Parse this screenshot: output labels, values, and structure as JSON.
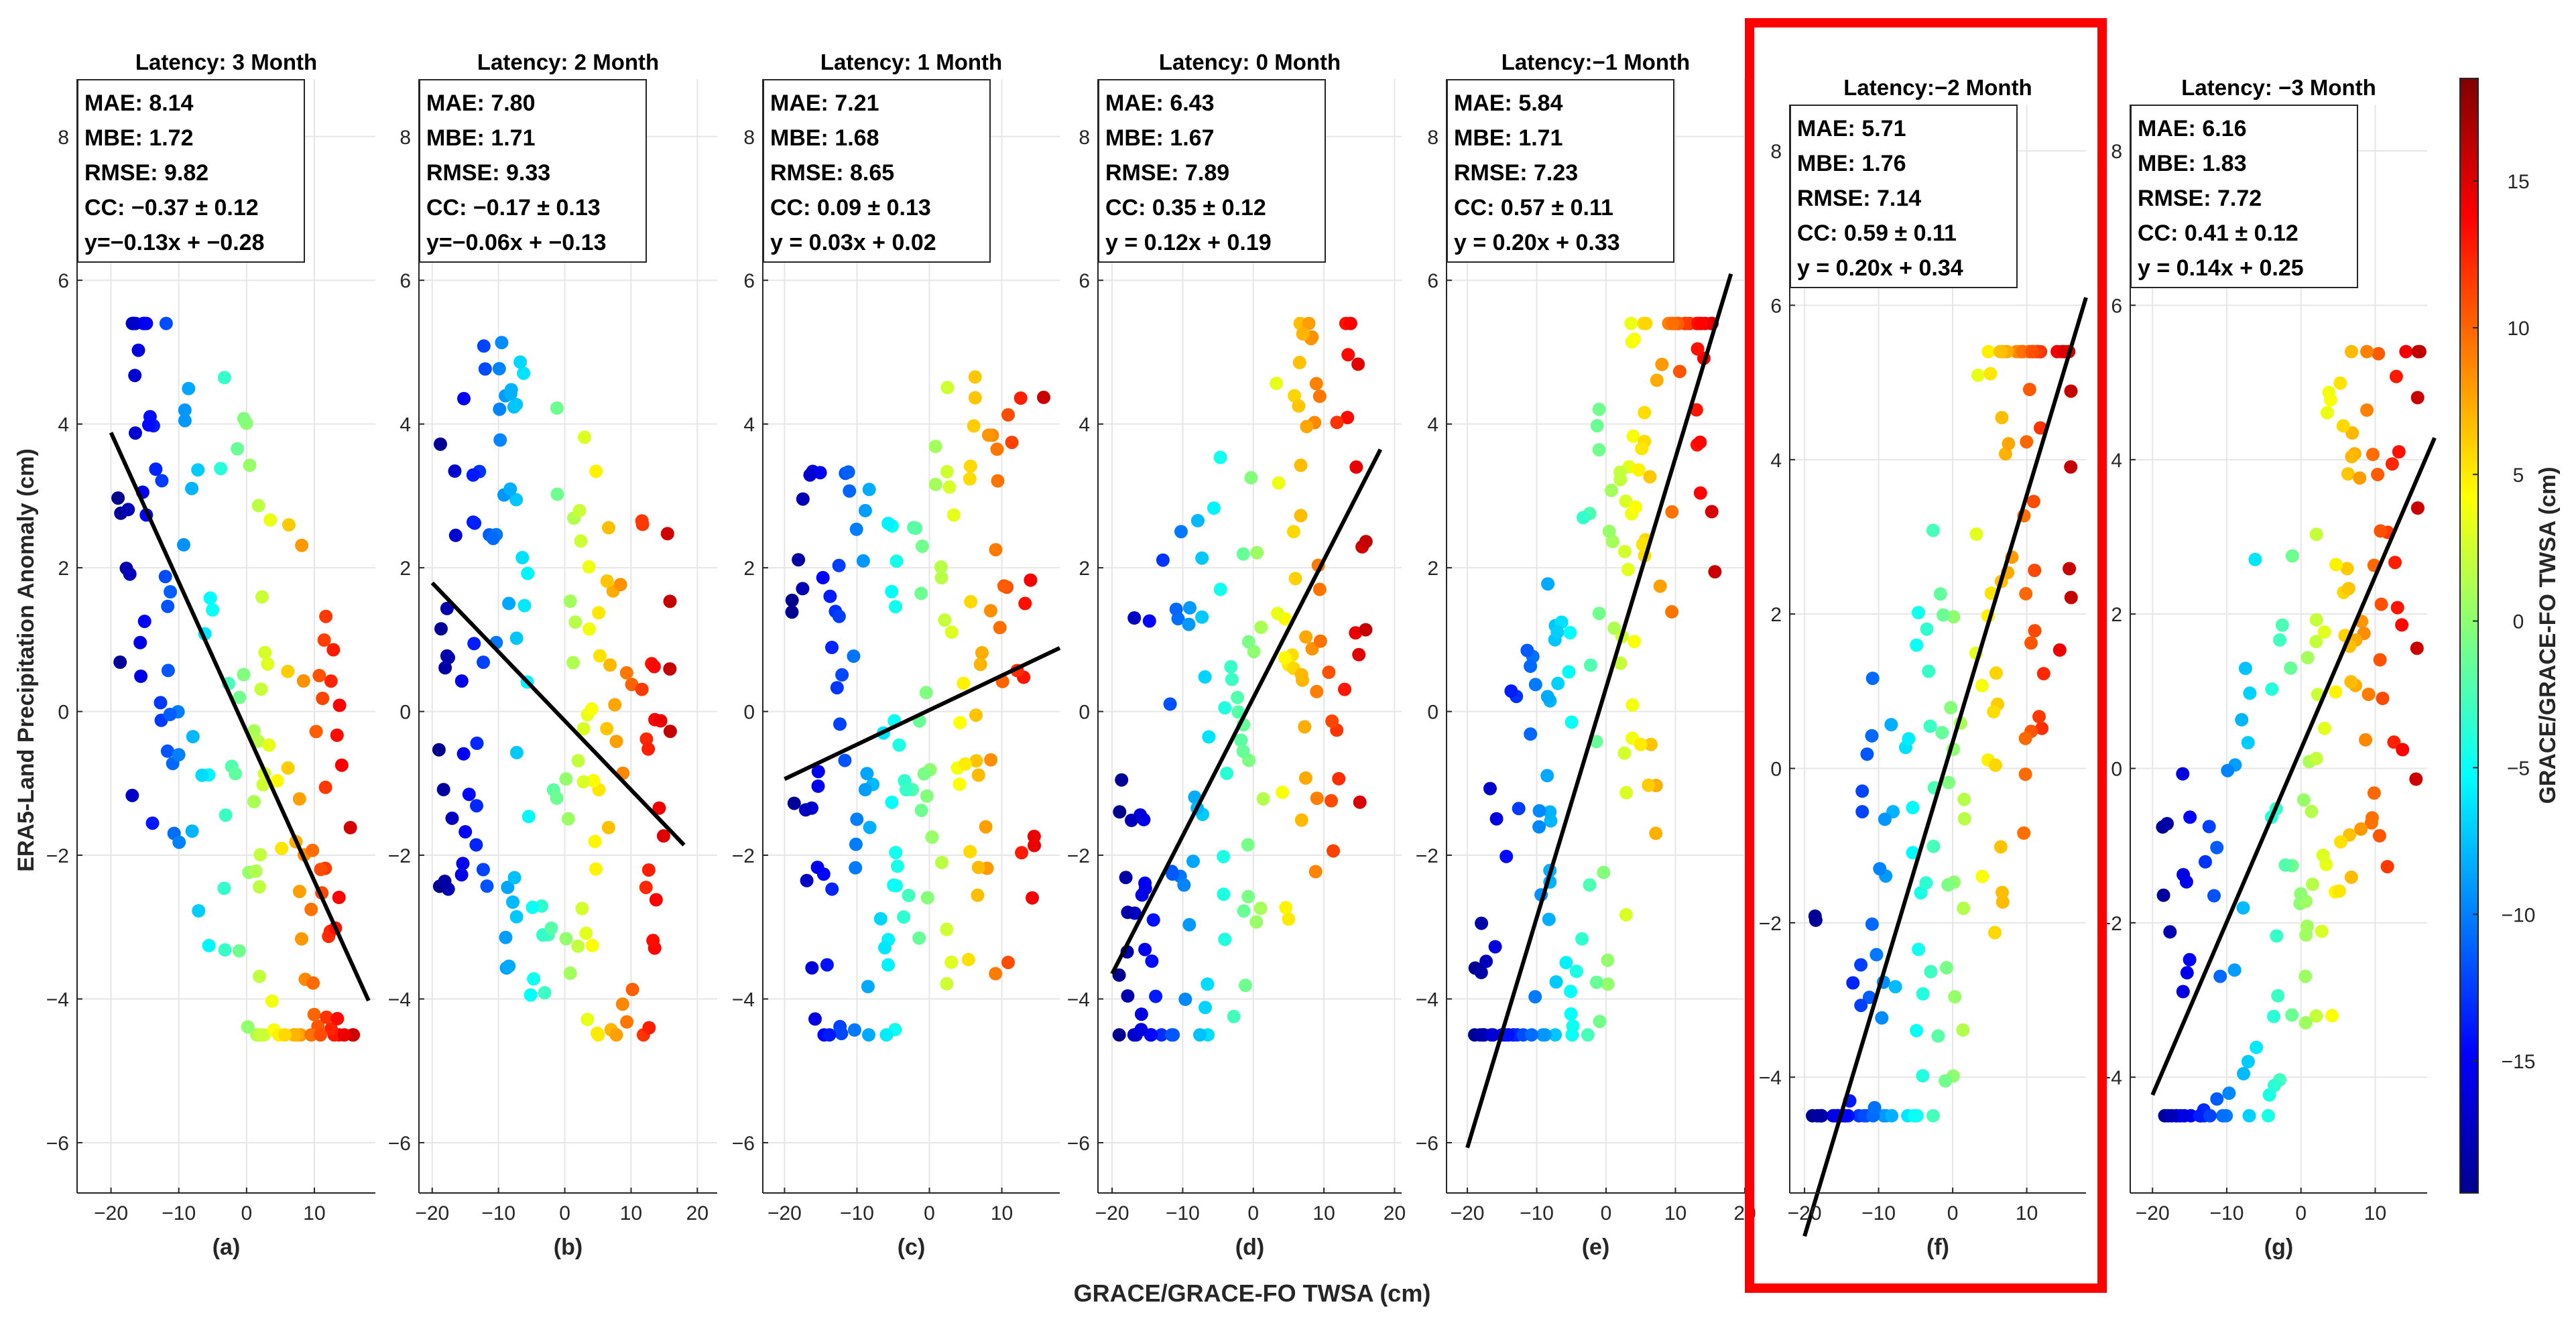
{
  "figure": {
    "xlabel": "GRACE/GRACE-FO TWSA (cm)",
    "ylabel": "ERA5-Land Precipitation Anomaly (cm)",
    "colorbar_label": "GRACE/GRACE-FO TWSA (cm)",
    "colorbar_ticks": [
      -15,
      -10,
      -5,
      0,
      5,
      10,
      15
    ],
    "colorbar_range": [
      -19.5,
      18.5
    ],
    "highlight_color": "#ff0000",
    "highlight_panel": 5,
    "x_ticks": [
      -20,
      -10,
      0,
      10,
      20
    ]
  },
  "chart_data": [
    {
      "type": "scatter",
      "title": "Latency: 3 Month",
      "panel_label": "(a)",
      "stats": [
        "MAE: 8.14",
        "MBE: 1.72",
        "RMSE: 9.82",
        "CC: −0.37 ± 0.12",
        "y=−0.13x + −0.28"
      ],
      "xlim": [
        -25,
        19
      ],
      "ylim": [
        -6.7,
        8.8
      ],
      "yticks": [
        -6,
        -4,
        -2,
        0,
        2,
        4,
        6,
        8
      ],
      "fit": {
        "slope": -0.13,
        "intercept": -0.28,
        "x_range": [
          -20,
          18
        ]
      }
    },
    {
      "type": "scatter",
      "title": "Latency: 2 Month",
      "panel_label": "(b)",
      "stats": [
        "MAE: 7.80",
        "MBE: 1.71",
        "RMSE: 9.33",
        "CC: −0.17 ± 0.13",
        "y=−0.06x + −0.13"
      ],
      "xlim": [
        -22,
        23
      ],
      "ylim": [
        -6.7,
        8.8
      ],
      "yticks": [
        -6,
        -4,
        -2,
        0,
        2,
        4,
        6,
        8
      ],
      "fit": {
        "slope": -0.06,
        "intercept": -0.13,
        "x_range": [
          -20,
          18
        ]
      }
    },
    {
      "type": "scatter",
      "title": "Latency: 1 Month",
      "panel_label": "(c)",
      "stats": [
        "MAE: 7.21",
        "MBE: 1.68",
        "RMSE: 8.65",
        "CC: 0.09 ± 0.13",
        "y = 0.03x + 0.02"
      ],
      "xlim": [
        -23,
        18
      ],
      "ylim": [
        -6.7,
        8.8
      ],
      "yticks": [
        -6,
        -4,
        -2,
        0,
        2,
        4,
        6,
        8
      ],
      "fit": {
        "slope": 0.03,
        "intercept": 0.02,
        "x_range": [
          -20,
          18
        ]
      }
    },
    {
      "type": "scatter",
      "title": "Latency: 0 Month",
      "panel_label": "(d)",
      "stats": [
        "MAE: 6.43",
        "MBE: 1.67",
        "RMSE: 7.89",
        "CC: 0.35 ± 0.12",
        "y = 0.12x + 0.19"
      ],
      "xlim": [
        -22,
        21
      ],
      "ylim": [
        -6.7,
        8.8
      ],
      "yticks": [
        -6,
        -4,
        -2,
        0,
        2,
        4,
        6,
        8
      ],
      "fit": {
        "slope": 0.12,
        "intercept": 0.19,
        "x_range": [
          -20,
          18
        ]
      }
    },
    {
      "type": "scatter",
      "title": "Latency:−1 Month",
      "panel_label": "(e)",
      "stats": [
        "MAE: 5.84",
        "MBE: 1.71",
        "RMSE: 7.23",
        "CC: 0.57 ± 0.11",
        "y = 0.20x + 0.33"
      ],
      "xlim": [
        -23,
        20
      ],
      "ylim": [
        -6.7,
        8.8
      ],
      "yticks": [
        -6,
        -4,
        -2,
        0,
        2,
        4,
        6,
        8
      ],
      "fit": {
        "slope": 0.2,
        "intercept": 0.33,
        "x_range": [
          -20,
          18
        ]
      }
    },
    {
      "type": "scatter",
      "title": "Latency:−2 Month",
      "panel_label": "(f)",
      "stats": [
        "MAE: 5.71",
        "MBE: 1.76",
        "RMSE: 7.14",
        "CC: 0.59 ± 0.11",
        "y = 0.20x + 0.34"
      ],
      "xlim": [
        -22,
        18
      ],
      "ylim": [
        -5.5,
        8.6
      ],
      "yticks": [
        -4,
        -2,
        0,
        2,
        4,
        6,
        8
      ],
      "fit": {
        "slope": 0.2,
        "intercept": 0.34,
        "x_range": [
          -20,
          18
        ]
      }
    },
    {
      "type": "scatter",
      "title": "Latency: −3 Month",
      "panel_label": "(g)",
      "stats": [
        "MAE: 6.16",
        "MBE: 1.83",
        "RMSE: 7.72",
        "CC: 0.41 ± 0.12",
        "y = 0.14x + 0.25"
      ],
      "xlim": [
        -23,
        17
      ],
      "ylim": [
        -5.5,
        8.6
      ],
      "yticks": [
        -4,
        -2,
        0,
        2,
        4,
        6,
        8
      ],
      "fit": {
        "slope": 0.14,
        "intercept": 0.25,
        "x_range": [
          -20,
          18
        ]
      }
    }
  ]
}
